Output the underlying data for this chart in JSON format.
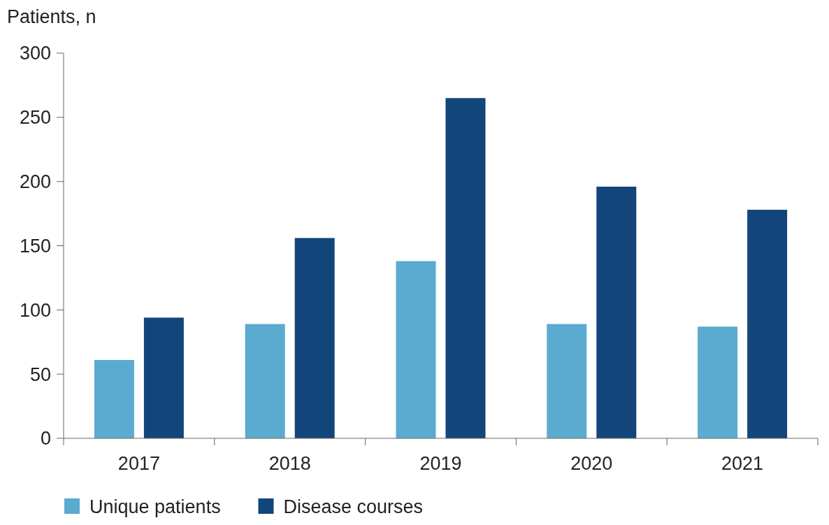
{
  "chart_data": {
    "type": "bar",
    "ylabel": "Patients, n",
    "categories": [
      "2017",
      "2018",
      "2019",
      "2020",
      "2021"
    ],
    "series": [
      {
        "name": "Unique patients",
        "color": "#5aabcf",
        "values": [
          61,
          89,
          138,
          89,
          87
        ]
      },
      {
        "name": "Disease courses",
        "color": "#12457a",
        "values": [
          94,
          156,
          265,
          196,
          178
        ]
      }
    ],
    "ylim": [
      0,
      300
    ],
    "yticks": [
      0,
      50,
      100,
      150,
      200,
      250,
      300
    ],
    "grid": false,
    "legend": "bottom"
  }
}
